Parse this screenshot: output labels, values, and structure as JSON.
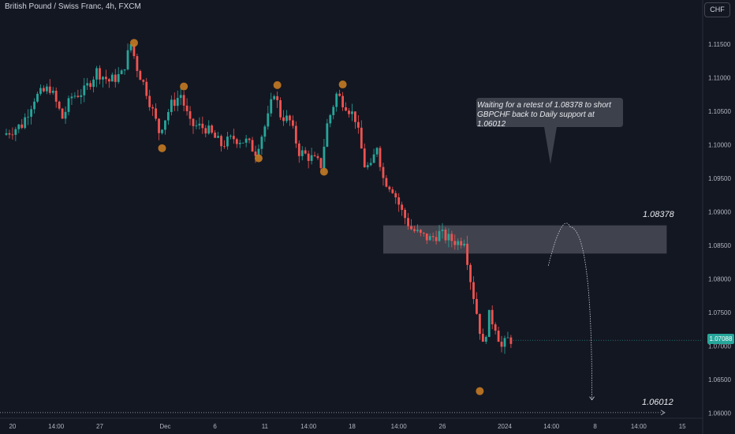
{
  "chart_data": {
    "type": "candlestick",
    "title": "British Pound / Swiss Franc, 4h, FXCM",
    "currency": "CHF",
    "ylim": [
      1.0595,
      1.119
    ],
    "y_ticks": [
      "1.11500",
      "1.11000",
      "1.10500",
      "1.10000",
      "1.09500",
      "1.09000",
      "1.08500",
      "1.08000",
      "1.07500",
      "1.07000",
      "1.06500",
      "1.06000"
    ],
    "x_ticks": [
      {
        "i": 2,
        "label": "20"
      },
      {
        "i": 16,
        "label": "14:00"
      },
      {
        "i": 30,
        "label": "27"
      },
      {
        "i": 51,
        "label": "Dec"
      },
      {
        "i": 67,
        "label": "6"
      },
      {
        "i": 83,
        "label": "11"
      },
      {
        "i": 97,
        "label": "14:00"
      },
      {
        "i": 111,
        "label": "18"
      },
      {
        "i": 126,
        "label": "14:00"
      },
      {
        "i": 140,
        "label": "26"
      },
      {
        "i": 160,
        "label": "2024"
      },
      {
        "i": 175,
        "label": "14:00"
      },
      {
        "i": 189,
        "label": "8"
      },
      {
        "i": 203,
        "label": "14:00"
      },
      {
        "i": 217,
        "label": "15"
      }
    ],
    "last_price": "1.07088",
    "annotation": "Waiting for a retest of 1.08378 to short GBPCHF back to Daily support at 1.06012",
    "zone": {
      "top": 1.088,
      "bottom": 1.0838,
      "i_start": 121,
      "i_end": 212
    },
    "levels": [
      {
        "label": "1.08378",
        "price": 1.0839
      },
      {
        "label": "1.06012",
        "price": 1.0601
      }
    ],
    "swing_markers": [
      {
        "i": 41,
        "price": 1.1152
      },
      {
        "i": 50,
        "price": 1.0995
      },
      {
        "i": 57,
        "price": 1.1087
      },
      {
        "i": 81,
        "price": 1.098
      },
      {
        "i": 87,
        "price": 1.1089
      },
      {
        "i": 102,
        "price": 1.096
      },
      {
        "i": 108,
        "price": 1.109
      },
      {
        "i": 152,
        "price": 1.0633
      }
    ],
    "projection": [
      [
        174,
        1.082
      ],
      [
        181,
        1.0878
      ],
      [
        186,
        1.082
      ],
      [
        188,
        1.062
      ]
    ],
    "anchors": [
      [
        0,
        1.1015
      ],
      [
        6,
        1.103
      ],
      [
        10,
        1.107
      ],
      [
        15,
        1.1085
      ],
      [
        19,
        1.104
      ],
      [
        22,
        1.1072
      ],
      [
        26,
        1.108
      ],
      [
        30,
        1.111
      ],
      [
        34,
        1.1095
      ],
      [
        38,
        1.1105
      ],
      [
        41,
        1.115
      ],
      [
        43,
        1.1115
      ],
      [
        46,
        1.108
      ],
      [
        50,
        1.102
      ],
      [
        54,
        1.106
      ],
      [
        57,
        1.1075
      ],
      [
        60,
        1.103
      ],
      [
        65,
        1.1025
      ],
      [
        70,
        1.1
      ],
      [
        74,
        1.101
      ],
      [
        78,
        1.1005
      ],
      [
        81,
        1.099
      ],
      [
        85,
        1.104
      ],
      [
        87,
        1.108
      ],
      [
        89,
        1.1045
      ],
      [
        92,
        1.1035
      ],
      [
        95,
        1.099
      ],
      [
        99,
        1.098
      ],
      [
        102,
        1.097
      ],
      [
        104,
        1.103
      ],
      [
        107,
        1.1075
      ],
      [
        110,
        1.106
      ],
      [
        113,
        1.104
      ],
      [
        116,
        1.097
      ],
      [
        118,
        1.0965
      ],
      [
        120,
        1.1
      ],
      [
        122,
        1.095
      ],
      [
        125,
        1.0935
      ],
      [
        128,
        1.09
      ],
      [
        131,
        1.0875
      ],
      [
        134,
        1.0865
      ],
      [
        137,
        1.086
      ],
      [
        140,
        1.0868
      ],
      [
        143,
        1.086
      ],
      [
        146,
        1.0855
      ],
      [
        148,
        1.086
      ],
      [
        150,
        1.08
      ],
      [
        152,
        1.075
      ],
      [
        154,
        1.07
      ],
      [
        156,
        1.0745
      ],
      [
        158,
        1.073
      ],
      [
        160,
        1.0698
      ],
      [
        162,
        1.071
      ]
    ]
  }
}
